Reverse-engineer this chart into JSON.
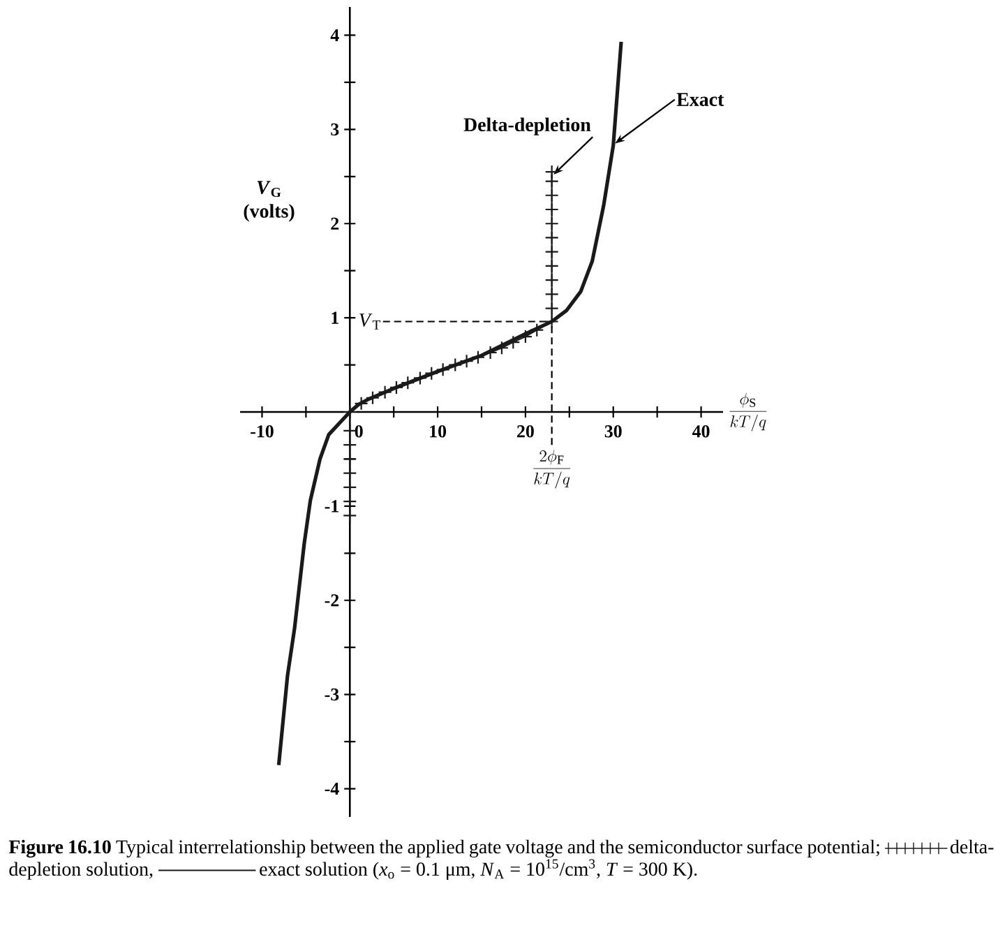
{
  "chart_data": {
    "type": "line",
    "xlabel": "\\frac{\\phi_{\\mathrm{S}}}{kT/q}",
    "ylabel": "*V*$_{G}$ (volts)",
    "xlim": [
      -12.5,
      42.5
    ],
    "ylim": [
      -4.3,
      4.3
    ],
    "xticks": [
      -10,
      {
        "value": -5,
        "label": null
      },
      0,
      {
        "value": 5,
        "label": null
      },
      10,
      {
        "value": 15,
        "label": null
      },
      20,
      {
        "value": 25,
        "label": null
      },
      30,
      {
        "value": 35,
        "label": null
      },
      40
    ],
    "yticks": [
      -4,
      {
        "value": -3.5,
        "label": null
      },
      -3,
      {
        "value": -2.5,
        "label": null
      },
      -2,
      {
        "value": -1.5,
        "label": null
      },
      -1,
      {
        "value": -0.5,
        "label": null
      },
      {
        "value": 0.5,
        "label": null
      },
      1,
      {
        "value": 1.5,
        "label": null
      },
      2,
      {
        "value": 2.5,
        "label": null
      },
      3,
      {
        "value": 3.5,
        "label": null
      },
      4
    ],
    "grid": false,
    "legend": "bottom",
    "line_style": "solid",
    "series": [
      {
        "name": "delta-depletion solution,",
        "color": "#1a1a1a",
        "marker": "cross",
        "x": [
          0,
          0,
          0,
          0,
          0,
          0,
          0,
          0,
          1.3,
          2.6,
          4,
          5.3,
          6.6,
          8,
          9.3,
          10.6,
          12,
          13.3,
          14.6,
          16,
          17.3,
          18.6,
          20,
          21.3,
          23,
          23,
          23,
          23,
          23,
          23,
          23,
          23,
          23,
          23,
          23,
          23
        ],
        "values": [
          -1.1,
          -0.95,
          -0.8,
          -0.65,
          -0.5,
          -0.35,
          -0.2,
          0,
          0.09,
          0.15,
          0.21,
          0.26,
          0.31,
          0.36,
          0.41,
          0.45,
          0.5,
          0.54,
          0.58,
          0.63,
          0.68,
          0.74,
          0.8,
          0.87,
          0.96,
          1.1,
          1.25,
          1.4,
          1.55,
          1.7,
          1.85,
          2.0,
          2.15,
          2.3,
          2.45,
          2.55
        ]
      },
      {
        "name": "exact solution",
        "color": "#1a1a1a",
        "marker": "none",
        "x": [
          -8.1,
          -7.1,
          -6.3,
          -5.2,
          -4.5,
          -3.4,
          -2.4,
          -0.8,
          0,
          1,
          2,
          5,
          10,
          15,
          20,
          23,
          24.7,
          26.3,
          27.6,
          28.9,
          30,
          30.9
        ],
        "values": [
          -3.75,
          -2.8,
          -2.3,
          -1.4,
          -0.94,
          -0.5,
          -0.24,
          -0.08,
          0,
          0.08,
          0.13,
          0.25,
          0.43,
          0.6,
          0.83,
          0.96,
          1.08,
          1.28,
          1.6,
          2.19,
          2.83,
          3.93
        ]
      }
    ],
    "ref_lines": [
      {
        "axis": "x",
        "value": 23,
        "label": "\\frac{2\\phi_{\\mathrm{F}}}{kT/q}",
        "line_style": "dashed"
      },
      {
        "axis": "y",
        "value": 0.96,
        "label": "*V*$_{T}$",
        "line_style": "dashed"
      }
    ],
    "annotations": [
      {
        "text": "Delta-depletion",
        "x": 23,
        "y": 2.5
      },
      {
        "text": "Exact",
        "x": 30,
        "y": 2.83
      },
      "**Figure 16.10** Typical interrelationship between the applied gate voltage and the semiconductor surface potential;",
      "(*x*$_{o}$ = 0.1 μm, *N*$_{A}$ = 10$^{15}$/cm$^{3}$, *T* = 300 K)."
    ]
  }
}
